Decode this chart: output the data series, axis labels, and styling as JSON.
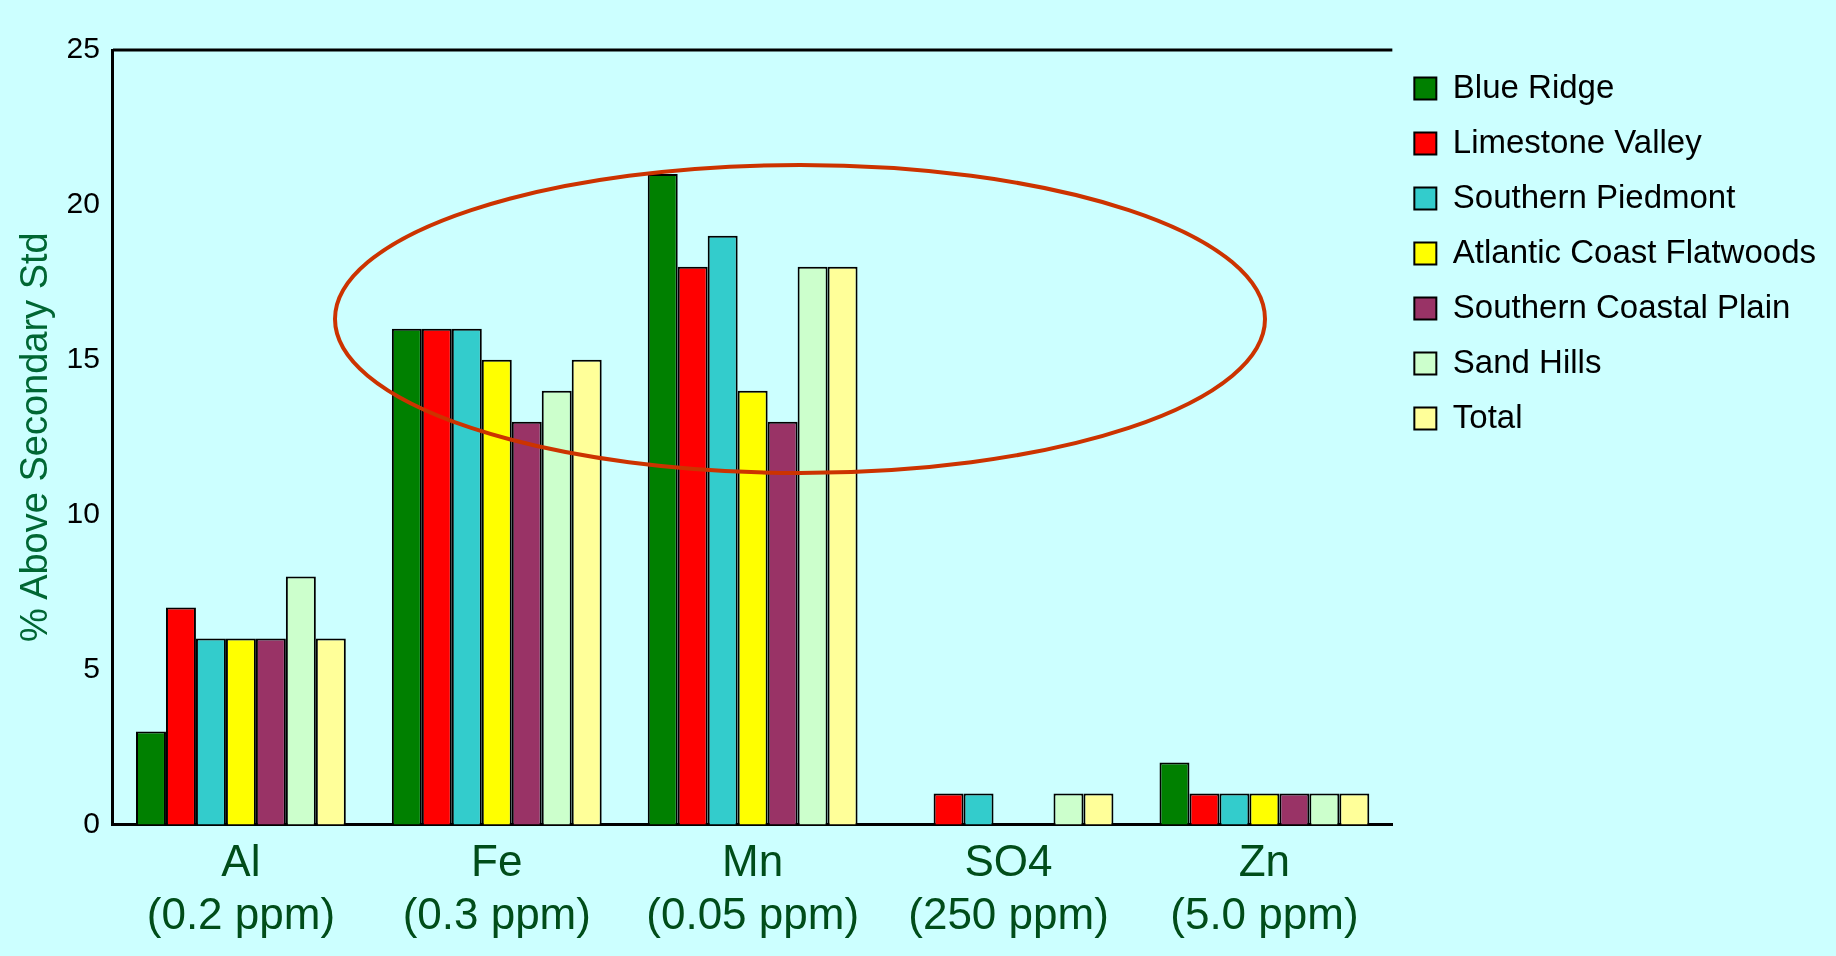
{
  "chart_data": {
    "type": "bar",
    "ylabel": "% Above Secondary Std",
    "categories": [
      "Al (0.2 ppm)",
      "Fe (0.3 ppm)",
      "Mn (0.05 ppm)",
      "SO4 (250 ppm)",
      "Zn (5.0 ppm)"
    ],
    "series": [
      {
        "name": "Blue Ridge",
        "color": "#008000",
        "values": [
          3,
          16,
          21,
          0,
          2
        ]
      },
      {
        "name": "Limestone Valley",
        "color": "#ff0000",
        "values": [
          7,
          16,
          18,
          1,
          1
        ]
      },
      {
        "name": "Southern Piedmont",
        "color": "#33cccc",
        "values": [
          6,
          16,
          19,
          1,
          1
        ]
      },
      {
        "name": "Atlantic Coast Flatwoods",
        "color": "#ffff00",
        "values": [
          6,
          15,
          14,
          0,
          1
        ]
      },
      {
        "name": "Southern Coastal Plain",
        "color": "#993366",
        "values": [
          6,
          13,
          13,
          0,
          1
        ]
      },
      {
        "name": "Sand Hills",
        "color": "#ccffcc",
        "values": [
          8,
          14,
          18,
          1,
          1
        ]
      },
      {
        "name": "Total",
        "color": "#ffff99",
        "values": [
          6,
          15,
          18,
          1,
          1
        ]
      }
    ],
    "ylim": [
      0,
      25
    ],
    "yticks": [
      0,
      5,
      10,
      15,
      20,
      25
    ],
    "grid": false,
    "legend": "right"
  }
}
